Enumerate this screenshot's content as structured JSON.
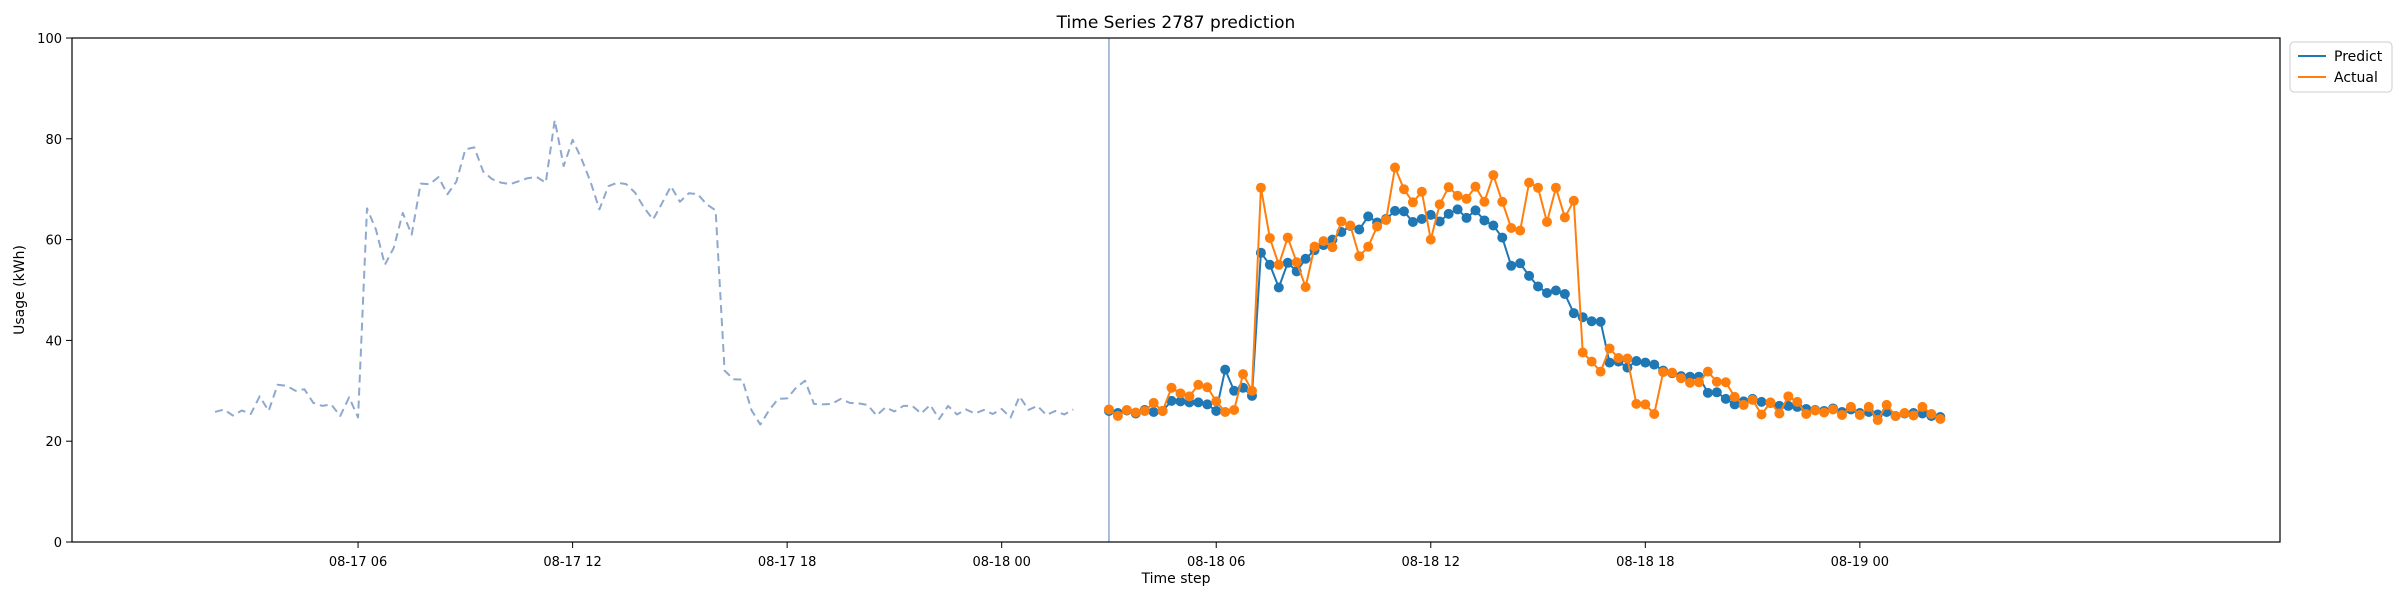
{
  "chart_data": {
    "type": "line",
    "title": "Time Series 2787 prediction",
    "xlabel": "Time step",
    "ylabel": "Usage (kWh)",
    "ylim": [
      0,
      100
    ],
    "yticks": [
      "0",
      "20",
      "40",
      "60",
      "80",
      "100"
    ],
    "xlim": [
      "2024-08-16 22:00",
      "2024-08-19 11:45"
    ],
    "xticks": [
      {
        "label": "08-17 06",
        "t": "2024-08-17 06:00"
      },
      {
        "label": "08-17 12",
        "t": "2024-08-17 12:00"
      },
      {
        "label": "08-17 18",
        "t": "2024-08-17 18:00"
      },
      {
        "label": "08-18 00",
        "t": "2024-08-18 00:00"
      },
      {
        "label": "08-18 06",
        "t": "2024-08-18 06:00"
      },
      {
        "label": "08-18 12",
        "t": "2024-08-18 12:00"
      },
      {
        "label": "08-18 18",
        "t": "2024-08-18 18:00"
      },
      {
        "label": "08-19 00",
        "t": "2024-08-19 00:00"
      }
    ],
    "forecast_start": "2024-08-18 03:00",
    "grid": false,
    "legend_position": "top-right",
    "series": [
      {
        "name": "",
        "role": "history",
        "color": "#8fa8cd",
        "style": "dashed",
        "start": "2024-08-17 02:00",
        "values": [
          25.8,
          26.3,
          25.1,
          26.1,
          25.4,
          28.9,
          26.0,
          31.2,
          31.0,
          30.0,
          30.3,
          27.6,
          27.0,
          27.3,
          25.0,
          28.7,
          24.7,
          66.2,
          62.0,
          55.0,
          58.4,
          65.3,
          61.0,
          71.1,
          71.0,
          72.4,
          69.0,
          71.5,
          77.9,
          78.3,
          73.5,
          72.0,
          71.3,
          71.0,
          71.6,
          72.2,
          72.4,
          71.3,
          83.7,
          74.6,
          79.8,
          76.0,
          71.5,
          66.0,
          70.6,
          71.3,
          71.0,
          69.3,
          66.3,
          64.0,
          67.2,
          70.6,
          67.5,
          69.2,
          69.0,
          67.0,
          65.8,
          34.0,
          32.3,
          32.2,
          26.2,
          23.3,
          26.2,
          28.4,
          28.5,
          30.6,
          32.0,
          27.4,
          27.3,
          27.4,
          28.4,
          27.6,
          27.5,
          27.2,
          25.1,
          26.7,
          25.9,
          27.0,
          27.0,
          25.5,
          27.2,
          24.4,
          27.0,
          25.3,
          26.3,
          25.5,
          26.2,
          25.4,
          26.4,
          24.7,
          28.9,
          26.2,
          27.0,
          25.2,
          26.0,
          25.3,
          26.3
        ]
      },
      {
        "name": "Predict",
        "role": "prediction",
        "color": "#1f77b4",
        "style": "solid-markers",
        "start": "2024-08-18 03:00",
        "values": [
          26.0,
          25.6,
          26.1,
          25.5,
          26.2,
          25.8,
          26.0,
          28.0,
          27.9,
          27.7,
          27.7,
          27.3,
          26.0,
          34.2,
          30.0,
          30.6,
          29.0,
          57.4,
          55.0,
          50.5,
          55.4,
          53.7,
          56.2,
          57.9,
          58.9,
          60.0,
          61.5,
          62.7,
          62.0,
          64.6,
          63.4,
          64.1,
          65.7,
          65.6,
          63.5,
          64.1,
          64.9,
          63.6,
          65.1,
          66.0,
          64.3,
          65.8,
          63.8,
          62.8,
          60.4,
          54.8,
          55.3,
          52.8,
          50.7,
          49.4,
          49.9,
          49.2,
          45.4,
          44.6,
          43.8,
          43.7,
          35.6,
          35.8,
          34.6,
          35.9,
          35.6,
          35.2,
          34.0,
          33.5,
          32.9,
          32.8,
          32.8,
          29.6,
          29.7,
          28.4,
          27.3,
          27.9,
          28.4,
          27.8,
          27.6,
          27.0,
          27.0,
          26.8,
          26.4,
          26.2,
          26.0,
          26.5,
          25.8,
          26.3,
          25.6,
          25.8,
          25.3,
          25.8,
          25.0,
          25.5,
          25.6,
          25.5,
          25.0,
          24.8
        ]
      },
      {
        "name": "Actual",
        "role": "actual",
        "color": "#ff7f0e",
        "style": "solid-markers",
        "start": "2024-08-18 03:00",
        "values": [
          26.3,
          25.0,
          26.2,
          25.7,
          26.0,
          27.6,
          26.0,
          30.6,
          29.5,
          28.9,
          31.2,
          30.7,
          27.9,
          25.8,
          26.2,
          33.3,
          30.0,
          70.3,
          60.3,
          55.0,
          60.4,
          55.5,
          50.6,
          58.6,
          59.7,
          58.5,
          63.6,
          62.8,
          56.7,
          58.6,
          62.6,
          63.9,
          74.3,
          70.0,
          67.4,
          69.5,
          60.0,
          67.0,
          70.4,
          68.7,
          68.1,
          70.5,
          67.5,
          72.8,
          67.5,
          62.3,
          61.8,
          71.3,
          70.3,
          63.5,
          70.3,
          64.4,
          67.7,
          37.6,
          35.8,
          33.8,
          38.4,
          36.5,
          36.4,
          27.4,
          27.3,
          25.4,
          33.7,
          33.6,
          32.5,
          31.6,
          31.7,
          33.8,
          31.8,
          31.7,
          28.8,
          27.2,
          28.2,
          25.3,
          27.7,
          25.5,
          28.9,
          27.8,
          25.4,
          26.1,
          25.7,
          26.3,
          25.2,
          26.8,
          25.2,
          26.8,
          24.2,
          27.2,
          25.0,
          25.6,
          25.1,
          26.8,
          25.4,
          24.4
        ]
      }
    ]
  }
}
